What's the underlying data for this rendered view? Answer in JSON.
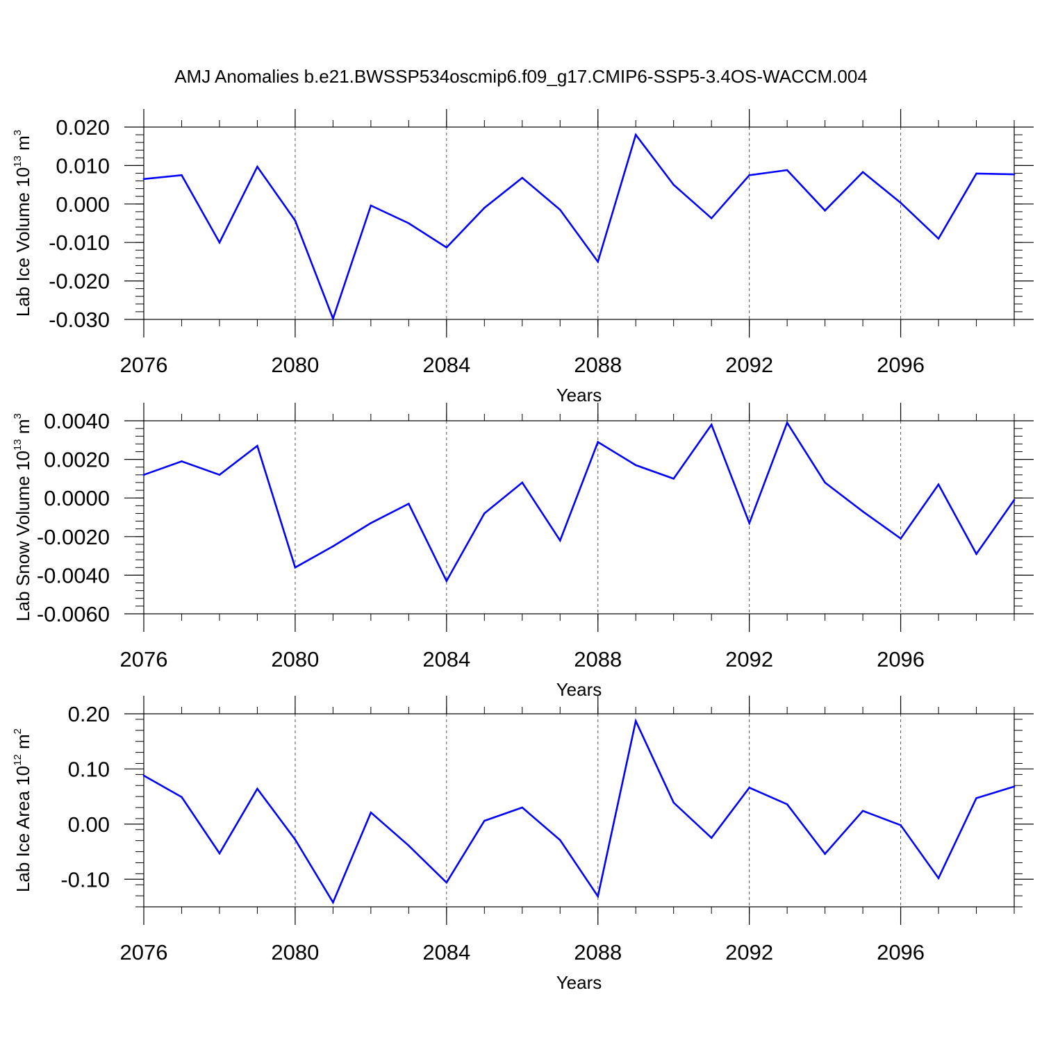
{
  "title": "AMJ Anomalies b.e21.BWSSP534oscmip6.f09_g17.CMIP6-SSP5-3.4OS-WACCM.004",
  "colors": {
    "line": "#0000ff",
    "axis": "#000000",
    "grid": "#555555"
  },
  "chart_data": [
    {
      "type": "line",
      "name": "lab-ice-volume",
      "ylabel_main": "Lab Ice Volume 10",
      "ylabel_exp": "13",
      "ylabel_unit": " m",
      "ylabel_unit_exp": "3",
      "xlabel": "Years",
      "x": [
        2076,
        2077,
        2078,
        2079,
        2080,
        2081,
        2082,
        2083,
        2084,
        2085,
        2086,
        2087,
        2088,
        2089,
        2090,
        2091,
        2092,
        2093,
        2094,
        2095,
        2096,
        2097,
        2098,
        2099
      ],
      "values": [
        0.0065,
        0.0075,
        -0.01,
        0.0097,
        -0.0043,
        -0.0298,
        -0.0004,
        -0.005,
        -0.0113,
        -0.001,
        0.0068,
        -0.0015,
        -0.015,
        0.018,
        0.005,
        -0.0037,
        0.0075,
        0.0088,
        -0.0017,
        0.0083,
        0.0003,
        -0.009,
        0.0079,
        0.0077
      ],
      "xlim": [
        2076,
        2099
      ],
      "ylim": [
        -0.03,
        0.02
      ],
      "ytick_values": [
        -0.03,
        -0.02,
        -0.01,
        0,
        0.01,
        0.02
      ],
      "yticks": [
        "-0.030",
        "-0.020",
        "-0.010",
        "0.000",
        "0.010",
        "0.020"
      ],
      "xtick_values": [
        2076,
        2080,
        2084,
        2088,
        2092,
        2096
      ],
      "xticks": [
        "2076",
        "2080",
        "2084",
        "2088",
        "2092",
        "2096"
      ]
    },
    {
      "type": "line",
      "name": "lab-snow-volume",
      "ylabel_main": "Lab Snow Volume 10",
      "ylabel_exp": "13",
      "ylabel_unit": " m",
      "ylabel_unit_exp": "3",
      "xlabel": "Years",
      "x": [
        2076,
        2077,
        2078,
        2079,
        2080,
        2081,
        2082,
        2083,
        2084,
        2085,
        2086,
        2087,
        2088,
        2089,
        2090,
        2091,
        2092,
        2093,
        2094,
        2095,
        2096,
        2097,
        2098,
        2099
      ],
      "values": [
        0.0012,
        0.0019,
        0.0012,
        0.0027,
        -0.0036,
        -0.0025,
        -0.0013,
        -0.0003,
        -0.0043,
        -0.0008,
        0.0008,
        -0.0022,
        0.0029,
        0.0017,
        0.001,
        0.0038,
        -0.0013,
        0.0039,
        0.0008,
        -0.0007,
        -0.0021,
        0.0007,
        -0.0029,
        -0.0001
      ],
      "xlim": [
        2076,
        2099
      ],
      "ylim": [
        -0.006,
        0.004
      ],
      "ytick_values": [
        -0.006,
        -0.004,
        -0.002,
        0,
        0.002,
        0.004
      ],
      "yticks": [
        "-0.0060",
        "-0.0040",
        "-0.0020",
        "0.0000",
        "0.0020",
        "0.0040"
      ],
      "xtick_values": [
        2076,
        2080,
        2084,
        2088,
        2092,
        2096
      ],
      "xticks": [
        "2076",
        "2080",
        "2084",
        "2088",
        "2092",
        "2096"
      ]
    },
    {
      "type": "line",
      "name": "lab-ice-area",
      "ylabel_main": "Lab Ice Area 10",
      "ylabel_exp": "12",
      "ylabel_unit": " m",
      "ylabel_unit_exp": "2",
      "xlabel": "Years",
      "x": [
        2076,
        2077,
        2078,
        2079,
        2080,
        2081,
        2082,
        2083,
        2084,
        2085,
        2086,
        2087,
        2088,
        2089,
        2090,
        2091,
        2092,
        2093,
        2094,
        2095,
        2096,
        2097,
        2098,
        2099
      ],
      "values": [
        0.088,
        0.049,
        -0.053,
        0.064,
        -0.028,
        -0.142,
        0.021,
        -0.039,
        -0.106,
        0.006,
        0.03,
        -0.029,
        -0.131,
        0.187,
        0.039,
        -0.025,
        0.066,
        0.036,
        -0.054,
        0.024,
        -0.002,
        -0.098,
        0.047,
        0.068
      ],
      "xlim": [
        2076,
        2099
      ],
      "ylim": [
        -0.15,
        0.2
      ],
      "ytick_values": [
        -0.1,
        0,
        0.1,
        0.2
      ],
      "yticks": [
        "-0.10",
        "0.00",
        "0.10",
        "0.20"
      ],
      "xtick_values": [
        2076,
        2080,
        2084,
        2088,
        2092,
        2096
      ],
      "xticks": [
        "2076",
        "2080",
        "2084",
        "2088",
        "2092",
        "2096"
      ]
    }
  ]
}
